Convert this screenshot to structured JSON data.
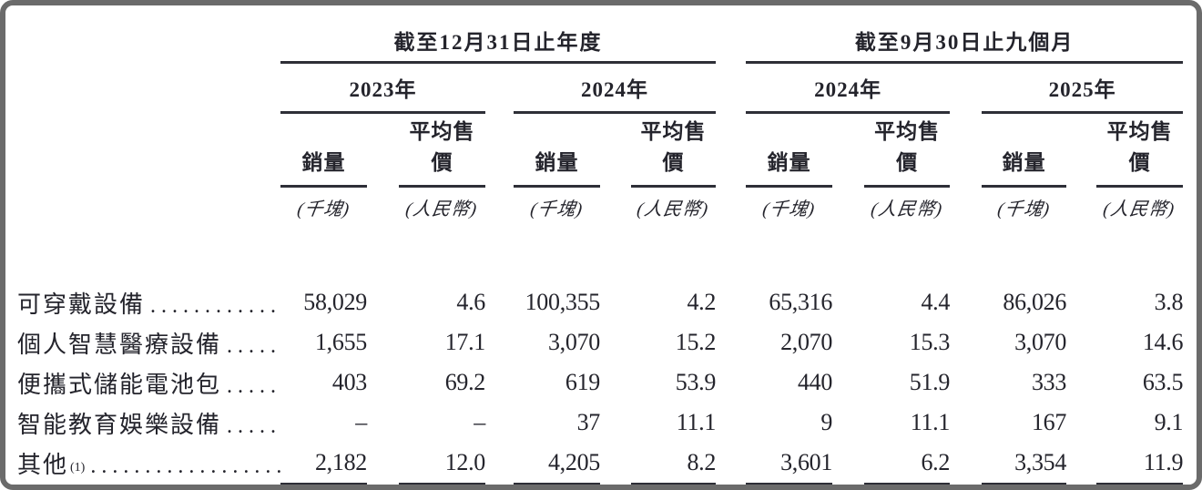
{
  "table": {
    "leader_dots": "...........................................................",
    "col_groups": [
      {
        "title": "截至12月31日止年度",
        "years": [
          {
            "label": "2023年"
          },
          {
            "label": "2024年"
          }
        ]
      },
      {
        "title": "截至9月30日止九個月",
        "years": [
          {
            "label": "2024年"
          },
          {
            "label": "2025年"
          }
        ]
      }
    ],
    "sub_headers": {
      "volume": "銷量",
      "asp": "平均售價"
    },
    "units": {
      "volume": "(千塊)",
      "asp": "(人民幣)"
    },
    "rows": [
      {
        "label": "可穿戴設備",
        "values": [
          "58,029",
          "4.6",
          "100,355",
          "4.2",
          "65,316",
          "4.4",
          "86,026",
          "3.8"
        ]
      },
      {
        "label": "個人智慧醫療設備",
        "values": [
          "1,655",
          "17.1",
          "3,070",
          "15.2",
          "2,070",
          "15.3",
          "3,070",
          "14.6"
        ]
      },
      {
        "label": "便攜式儲能電池包",
        "values": [
          "403",
          "69.2",
          "619",
          "53.9",
          "440",
          "51.9",
          "333",
          "63.5"
        ]
      },
      {
        "label": "智能教育娛樂設備",
        "values": [
          "–",
          "–",
          "37",
          "11.1",
          "9",
          "11.1",
          "167",
          "9.1"
        ]
      },
      {
        "label": "其他",
        "footnote": "(1)",
        "values": [
          "2,182",
          "12.0",
          "4,205",
          "8.2",
          "3,601",
          "6.2",
          "3,354",
          "11.9"
        ]
      }
    ],
    "colors": {
      "text": "#24242c",
      "rule": "#2e2f37",
      "frame": "#6b6b6b"
    }
  }
}
